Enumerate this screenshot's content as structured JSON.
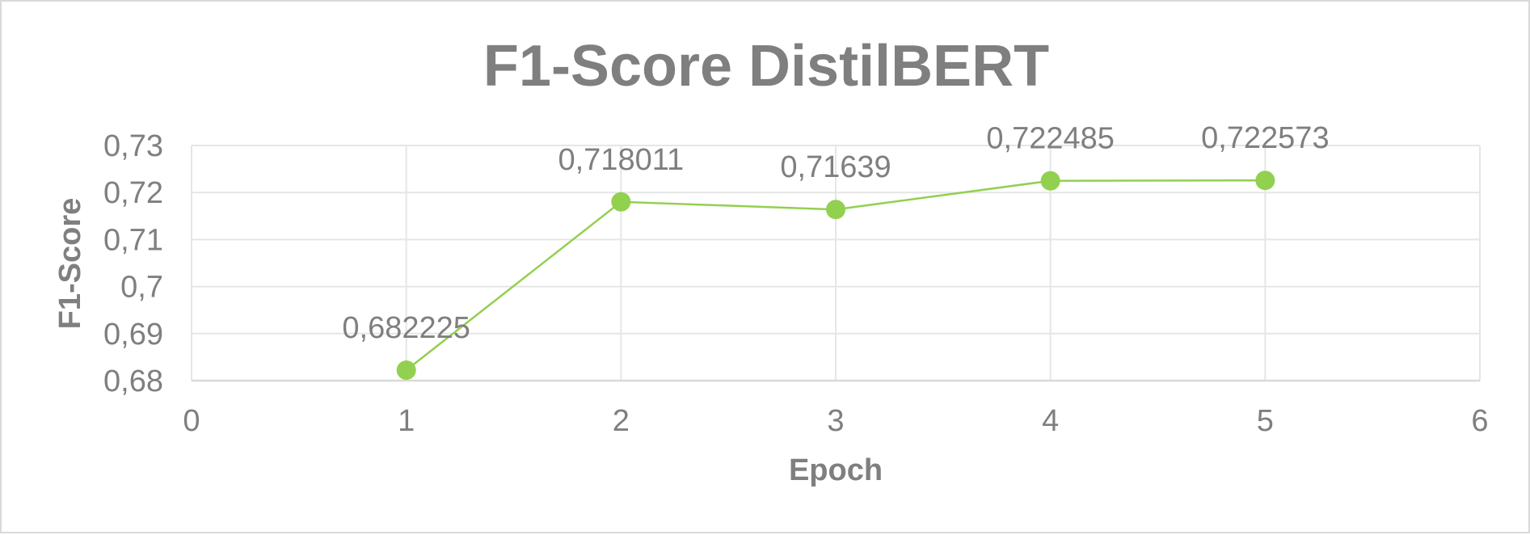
{
  "chart_data": {
    "type": "scatter",
    "title": "F1-Score DistilBERT",
    "xlabel": "Epoch",
    "ylabel": "F1-Score",
    "xlim": [
      0,
      6
    ],
    "ylim": [
      0.68,
      0.73
    ],
    "x_ticks": [
      0,
      1,
      2,
      3,
      4,
      5,
      6
    ],
    "x_tick_labels": [
      "0",
      "1",
      "2",
      "3",
      "4",
      "5",
      "6"
    ],
    "y_ticks": [
      0.68,
      0.69,
      0.7,
      0.71,
      0.72,
      0.73
    ],
    "y_tick_labels": [
      "0,68",
      "0,69",
      "0,7",
      "0,71",
      "0,72",
      "0,73"
    ],
    "grid": true,
    "legend": "none",
    "series": [
      {
        "color": "#92d050",
        "x": [
          1,
          2,
          3,
          4,
          5
        ],
        "values": [
          0.682225,
          0.718011,
          0.71639,
          0.722485,
          0.722573
        ],
        "data_labels": [
          "0,682225",
          "0,718011",
          "0,71639",
          "0,722485",
          "0,722573"
        ]
      }
    ]
  }
}
